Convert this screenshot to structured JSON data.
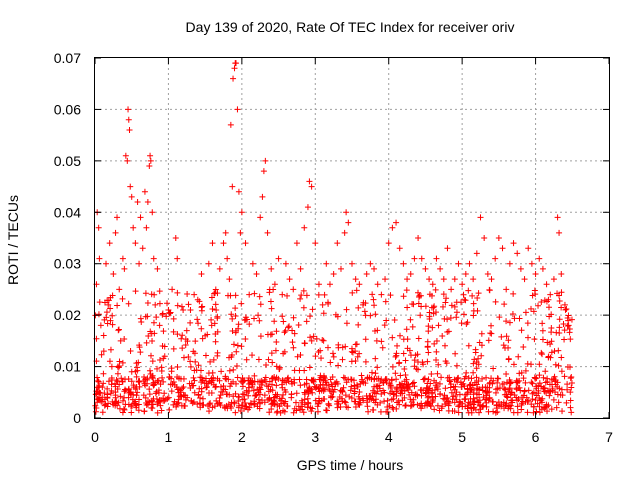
{
  "chart_data": {
    "type": "scatter",
    "title": "Day 139 of 2020, Rate Of TEC Index for receiver oriv",
    "xlabel": "GPS time / hours",
    "ylabel": "ROTI / TECUs",
    "xlim": [
      0,
      7
    ],
    "ylim": [
      0,
      0.07
    ],
    "x_ticks": [
      "0",
      "1",
      "2",
      "3",
      "4",
      "5",
      "6",
      "7"
    ],
    "y_ticks": [
      "0",
      "0.01",
      "0.02",
      "0.03",
      "0.04",
      "0.05",
      "0.06",
      "0.07"
    ],
    "grid": true,
    "marker": "+",
    "color": "#ff0000",
    "series": [
      {
        "name": "ROTI",
        "points": [
          [
            0.02,
            0.026
          ],
          [
            0.03,
            0.04
          ],
          [
            0.05,
            0.037
          ],
          [
            0.06,
            0.031
          ],
          [
            0.08,
            0.018
          ],
          [
            0.1,
            0.006
          ],
          [
            0.12,
            0.013
          ],
          [
            0.15,
            0.03
          ],
          [
            0.18,
            0.022
          ],
          [
            0.2,
            0.034
          ],
          [
            0.23,
            0.01
          ],
          [
            0.25,
            0.028
          ],
          [
            0.28,
            0.036
          ],
          [
            0.3,
            0.039
          ],
          [
            0.33,
            0.025
          ],
          [
            0.35,
            0.015
          ],
          [
            0.38,
            0.031
          ],
          [
            0.4,
            0.029
          ],
          [
            0.42,
            0.051
          ],
          [
            0.44,
            0.05
          ],
          [
            0.45,
            0.06
          ],
          [
            0.46,
            0.058
          ],
          [
            0.47,
            0.056
          ],
          [
            0.48,
            0.045
          ],
          [
            0.5,
            0.043
          ],
          [
            0.52,
            0.037
          ],
          [
            0.55,
            0.034
          ],
          [
            0.58,
            0.042
          ],
          [
            0.6,
            0.03
          ],
          [
            0.62,
            0.039
          ],
          [
            0.65,
            0.033
          ],
          [
            0.68,
            0.044
          ],
          [
            0.7,
            0.037
          ],
          [
            0.72,
            0.042
          ],
          [
            0.74,
            0.049
          ],
          [
            0.75,
            0.051
          ],
          [
            0.76,
            0.05
          ],
          [
            0.78,
            0.04
          ],
          [
            0.8,
            0.031
          ],
          [
            0.82,
            0.022
          ],
          [
            0.85,
            0.029
          ],
          [
            0.88,
            0.018
          ],
          [
            0.92,
            0.014
          ],
          [
            0.95,
            0.012
          ],
          [
            1.0,
            0.021
          ],
          [
            1.05,
            0.025
          ],
          [
            1.1,
            0.035
          ],
          [
            1.12,
            0.031
          ],
          [
            1.2,
            0.021
          ],
          [
            1.25,
            0.017
          ],
          [
            1.3,
            0.021
          ],
          [
            1.35,
            0.024
          ],
          [
            1.4,
            0.023
          ],
          [
            1.45,
            0.028
          ],
          [
            1.5,
            0.016
          ],
          [
            1.55,
            0.03
          ],
          [
            1.6,
            0.034
          ],
          [
            1.65,
            0.021
          ],
          [
            1.7,
            0.029
          ],
          [
            1.75,
            0.034
          ],
          [
            1.78,
            0.036
          ],
          [
            1.8,
            0.031
          ],
          [
            1.83,
            0.027
          ],
          [
            1.85,
            0.057
          ],
          [
            1.87,
            0.045
          ],
          [
            1.88,
            0.066
          ],
          [
            1.9,
            0.068
          ],
          [
            1.91,
            0.069
          ],
          [
            1.92,
            0.069
          ],
          [
            1.94,
            0.06
          ],
          [
            1.96,
            0.044
          ],
          [
            1.98,
            0.036
          ],
          [
            2.0,
            0.04
          ],
          [
            2.05,
            0.034
          ],
          [
            2.1,
            0.024
          ],
          [
            2.15,
            0.03
          ],
          [
            2.2,
            0.028
          ],
          [
            2.25,
            0.039
          ],
          [
            2.28,
            0.043
          ],
          [
            2.3,
            0.048
          ],
          [
            2.32,
            0.05
          ],
          [
            2.35,
            0.036
          ],
          [
            2.4,
            0.029
          ],
          [
            2.45,
            0.026
          ],
          [
            2.5,
            0.031
          ],
          [
            2.55,
            0.024
          ],
          [
            2.6,
            0.03
          ],
          [
            2.65,
            0.027
          ],
          [
            2.7,
            0.025
          ],
          [
            2.75,
            0.034
          ],
          [
            2.8,
            0.029
          ],
          [
            2.85,
            0.037
          ],
          [
            2.9,
            0.041
          ],
          [
            2.92,
            0.046
          ],
          [
            2.95,
            0.045
          ],
          [
            3.0,
            0.034
          ],
          [
            3.05,
            0.026
          ],
          [
            3.1,
            0.022
          ],
          [
            3.15,
            0.03
          ],
          [
            3.2,
            0.026
          ],
          [
            3.25,
            0.028
          ],
          [
            3.3,
            0.034
          ],
          [
            3.35,
            0.029
          ],
          [
            3.4,
            0.036
          ],
          [
            3.42,
            0.04
          ],
          [
            3.45,
            0.038
          ],
          [
            3.5,
            0.03
          ],
          [
            3.55,
            0.027
          ],
          [
            3.6,
            0.026
          ],
          [
            3.65,
            0.022
          ],
          [
            3.7,
            0.028
          ],
          [
            3.75,
            0.03
          ],
          [
            3.8,
            0.029
          ],
          [
            3.85,
            0.026
          ],
          [
            3.9,
            0.024
          ],
          [
            3.95,
            0.027
          ],
          [
            4.0,
            0.034
          ],
          [
            4.05,
            0.037
          ],
          [
            4.1,
            0.038
          ],
          [
            4.15,
            0.033
          ],
          [
            4.2,
            0.03
          ],
          [
            4.25,
            0.027
          ],
          [
            4.3,
            0.028
          ],
          [
            4.35,
            0.031
          ],
          [
            4.4,
            0.035
          ],
          [
            4.45,
            0.031
          ],
          [
            4.5,
            0.029
          ],
          [
            4.55,
            0.027
          ],
          [
            4.6,
            0.026
          ],
          [
            4.65,
            0.031
          ],
          [
            4.7,
            0.029
          ],
          [
            4.75,
            0.027
          ],
          [
            4.8,
            0.033
          ],
          [
            4.85,
            0.025
          ],
          [
            4.9,
            0.027
          ],
          [
            4.95,
            0.03
          ],
          [
            5.0,
            0.026
          ],
          [
            5.05,
            0.028
          ],
          [
            5.1,
            0.03
          ],
          [
            5.15,
            0.027
          ],
          [
            5.2,
            0.032
          ],
          [
            5.25,
            0.039
          ],
          [
            5.3,
            0.035
          ],
          [
            5.35,
            0.028
          ],
          [
            5.4,
            0.027
          ],
          [
            5.45,
            0.031
          ],
          [
            5.5,
            0.035
          ],
          [
            5.55,
            0.033
          ],
          [
            5.6,
            0.025
          ],
          [
            5.65,
            0.03
          ],
          [
            5.7,
            0.034
          ],
          [
            5.75,
            0.032
          ],
          [
            5.8,
            0.029
          ],
          [
            5.85,
            0.027
          ],
          [
            5.9,
            0.033
          ],
          [
            5.95,
            0.03
          ],
          [
            6.0,
            0.028
          ],
          [
            6.05,
            0.031
          ],
          [
            6.1,
            0.029
          ],
          [
            6.15,
            0.026
          ],
          [
            6.2,
            0.024
          ],
          [
            6.25,
            0.027
          ],
          [
            6.3,
            0.039
          ],
          [
            6.32,
            0.036
          ],
          [
            6.35,
            0.028
          ],
          [
            6.4,
            0.022
          ],
          [
            6.45,
            0.018
          ]
        ]
      }
    ],
    "cloud": {
      "x_range": [
        0.0,
        6.5
      ],
      "y_range": [
        0.001,
        0.025
      ],
      "count": 1600,
      "floor_band": [
        0.002,
        0.008
      ]
    }
  }
}
